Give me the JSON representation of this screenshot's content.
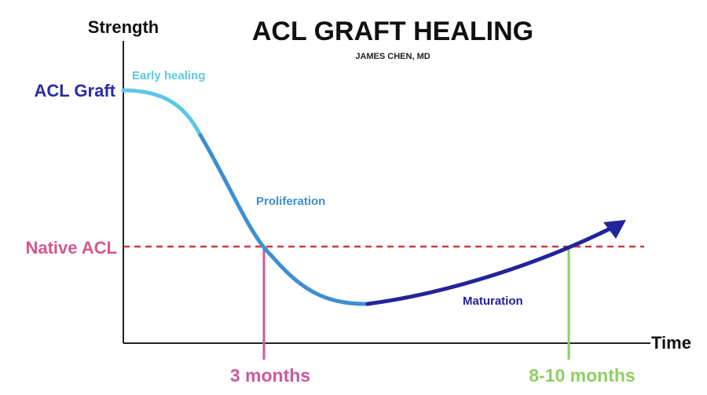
{
  "chart_data": {
    "type": "line",
    "title": "ACL GRAFT HEALING",
    "subtitle": "JAMES CHEN, MD",
    "ylabel": "Strength",
    "xlabel": "Time",
    "y_labels": [
      {
        "text": "ACL Graft",
        "color": "#2a2aa8"
      },
      {
        "text": "Native ACL",
        "color": "#d4578c"
      }
    ],
    "x_markers": [
      {
        "text": "3 months",
        "color": "#cc5a9c"
      },
      {
        "text": "8-10 months",
        "color": "#8fcf63"
      }
    ],
    "phases": [
      {
        "name": "Early healing",
        "color": "#5bc8e6"
      },
      {
        "name": "Proliferation",
        "color": "#3d8fd1"
      },
      {
        "name": "Maturation",
        "color": "#23239a"
      }
    ],
    "reference_line": {
      "label": "Native ACL",
      "color": "#cc3b3b",
      "style": "dashed"
    },
    "colors": {
      "axis": "#222222",
      "title": "#111111"
    }
  }
}
